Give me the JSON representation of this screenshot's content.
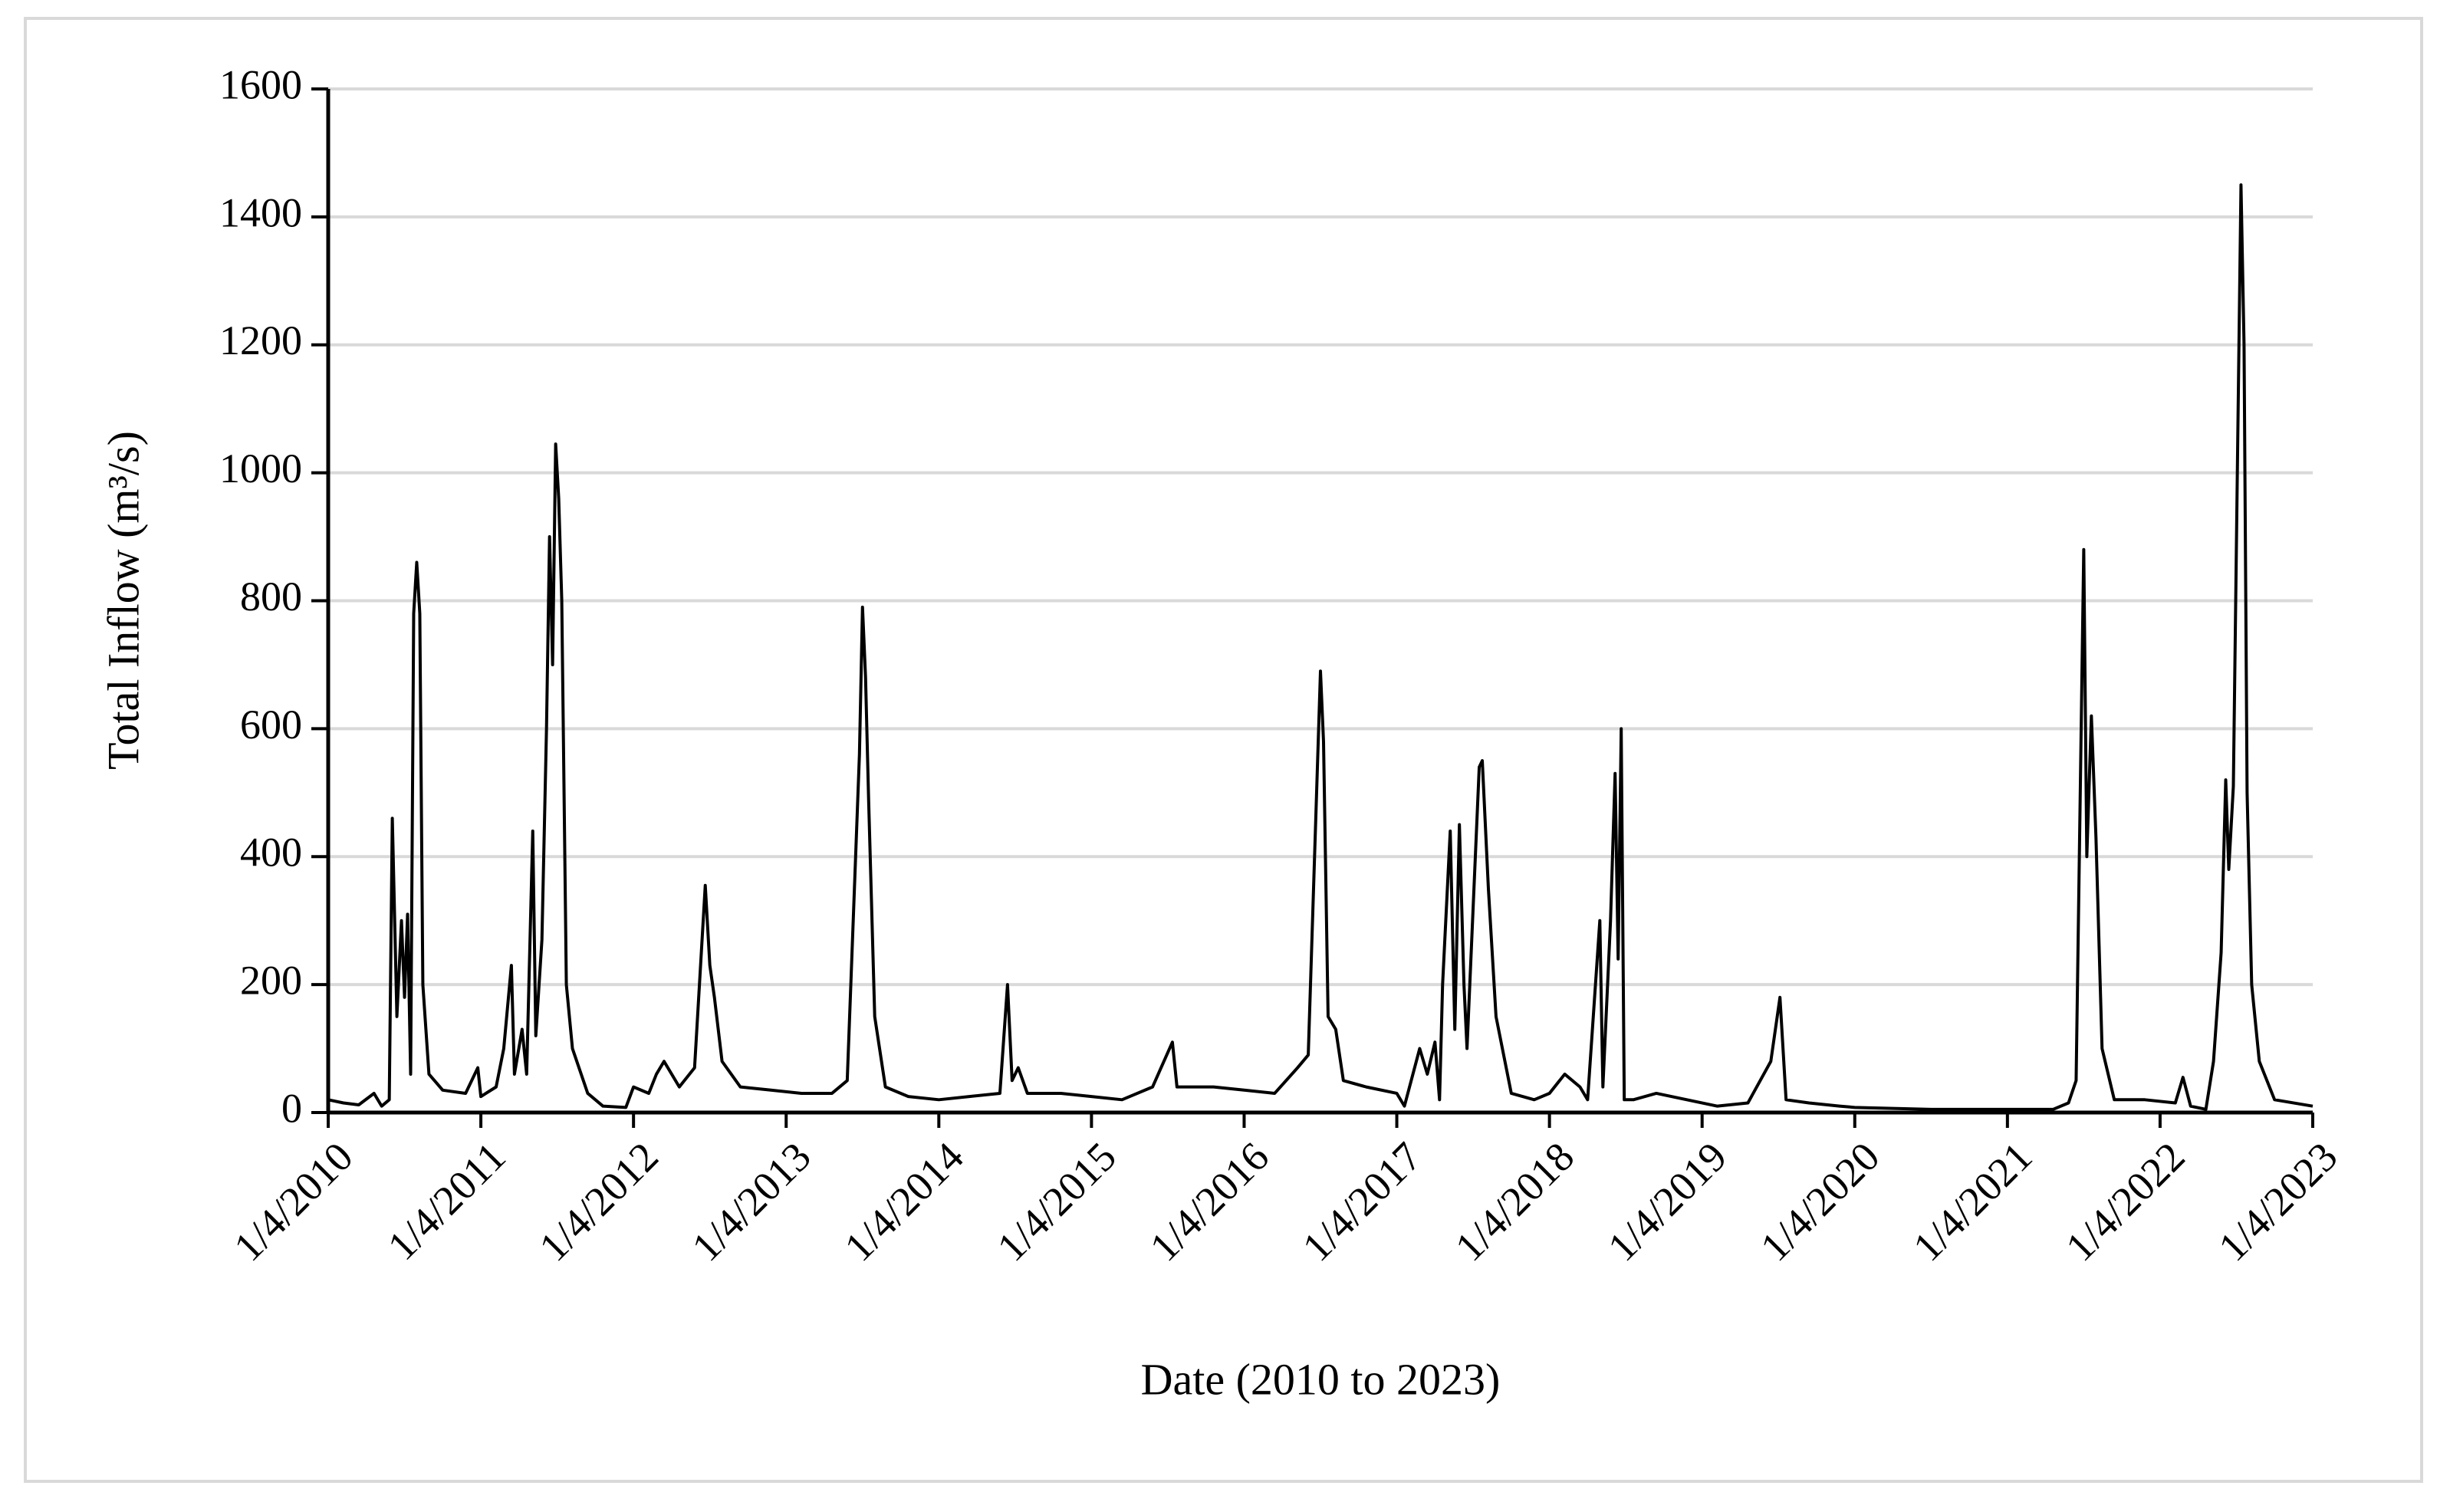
{
  "chart_data": {
    "type": "line",
    "x_label": "Date (2010 to 2023)",
    "y_label": "Total Inflow (m³/s)",
    "color": "#000000",
    "grid": true,
    "xlim": [
      2010,
      2023
    ],
    "ylim": [
      0,
      1600
    ],
    "xticks": [
      {
        "value": 2010,
        "label": "1/4/2010"
      },
      {
        "value": 2011,
        "label": "1/4/2011"
      },
      {
        "value": 2012,
        "label": "1/4/2012"
      },
      {
        "value": 2013,
        "label": "1/4/2013"
      },
      {
        "value": 2014,
        "label": "1/4/2014"
      },
      {
        "value": 2015,
        "label": "1/4/2015"
      },
      {
        "value": 2016,
        "label": "1/4/2016"
      },
      {
        "value": 2017,
        "label": "1/4/2017"
      },
      {
        "value": 2018,
        "label": "1/4/2018"
      },
      {
        "value": 2019,
        "label": "1/4/2019"
      },
      {
        "value": 2020,
        "label": "1/4/2020"
      },
      {
        "value": 2021,
        "label": "1/4/2021"
      },
      {
        "value": 2022,
        "label": "1/4/2022"
      },
      {
        "value": 2023,
        "label": "1/4/2023"
      }
    ],
    "yticks": [
      0,
      200,
      400,
      600,
      800,
      1000,
      1200,
      1400,
      1600
    ],
    "x": [
      2010.0,
      2010.1,
      2010.2,
      2010.3,
      2010.35,
      2010.4,
      2010.42,
      2010.45,
      2010.48,
      2010.5,
      2010.52,
      2010.54,
      2010.56,
      2010.58,
      2010.6,
      2010.62,
      2010.66,
      2010.75,
      2010.9,
      2010.98,
      2011.0,
      2011.1,
      2011.15,
      2011.2,
      2011.22,
      2011.27,
      2011.3,
      2011.34,
      2011.36,
      2011.4,
      2011.43,
      2011.45,
      2011.47,
      2011.49,
      2011.51,
      2011.53,
      2011.56,
      2011.6,
      2011.7,
      2011.8,
      2011.95,
      2012.0,
      2012.1,
      2012.15,
      2012.2,
      2012.3,
      2012.4,
      2012.47,
      2012.5,
      2012.53,
      2012.58,
      2012.7,
      2012.9,
      2013.1,
      2013.3,
      2013.4,
      2013.48,
      2013.5,
      2013.52,
      2013.54,
      2013.58,
      2013.65,
      2013.8,
      2014.0,
      2014.2,
      2014.4,
      2014.45,
      2014.48,
      2014.52,
      2014.58,
      2014.8,
      2015.0,
      2015.2,
      2015.4,
      2015.53,
      2015.56,
      2015.8,
      2016.0,
      2016.2,
      2016.35,
      2016.42,
      2016.5,
      2016.52,
      2016.55,
      2016.6,
      2016.65,
      2016.8,
      2017.0,
      2017.05,
      2017.15,
      2017.2,
      2017.25,
      2017.28,
      2017.3,
      2017.35,
      2017.38,
      2017.41,
      2017.44,
      2017.46,
      2017.54,
      2017.56,
      2017.6,
      2017.65,
      2017.75,
      2017.9,
      2018.0,
      2018.1,
      2018.2,
      2018.25,
      2018.33,
      2018.35,
      2018.4,
      2018.43,
      2018.45,
      2018.47,
      2018.49,
      2018.55,
      2018.7,
      2018.9,
      2019.1,
      2019.3,
      2019.45,
      2019.51,
      2019.55,
      2019.7,
      2019.9,
      2020.0,
      2020.5,
      2021.0,
      2021.3,
      2021.4,
      2021.45,
      2021.5,
      2021.52,
      2021.55,
      2021.58,
      2021.62,
      2021.7,
      2021.9,
      2022.1,
      2022.15,
      2022.2,
      2022.3,
      2022.35,
      2022.4,
      2022.43,
      2022.45,
      2022.48,
      2022.53,
      2022.55,
      2022.57,
      2022.6,
      2022.65,
      2022.75,
      2023.0
    ],
    "values": [
      20,
      15,
      12,
      30,
      10,
      20,
      460,
      150,
      300,
      180,
      310,
      60,
      780,
      860,
      780,
      200,
      60,
      35,
      30,
      70,
      25,
      40,
      100,
      230,
      60,
      130,
      60,
      440,
      120,
      270,
      600,
      900,
      700,
      1045,
      960,
      800,
      200,
      100,
      30,
      10,
      8,
      40,
      30,
      60,
      80,
      40,
      70,
      355,
      230,
      180,
      80,
      40,
      35,
      30,
      30,
      50,
      560,
      790,
      680,
      490,
      150,
      40,
      25,
      20,
      25,
      30,
      200,
      50,
      70,
      30,
      30,
      25,
      20,
      40,
      110,
      40,
      40,
      35,
      30,
      70,
      90,
      690,
      580,
      150,
      130,
      50,
      40,
      30,
      10,
      100,
      60,
      110,
      20,
      200,
      440,
      130,
      450,
      200,
      100,
      540,
      550,
      350,
      150,
      30,
      20,
      30,
      60,
      40,
      20,
      300,
      40,
      300,
      530,
      240,
      600,
      20,
      20,
      30,
      20,
      10,
      15,
      80,
      180,
      20,
      15,
      10,
      8,
      5,
      5,
      5,
      15,
      50,
      880,
      400,
      620,
      430,
      100,
      20,
      20,
      15,
      55,
      10,
      5,
      80,
      250,
      520,
      380,
      510,
      1450,
      1200,
      500,
      200,
      80,
      20,
      10
    ]
  }
}
